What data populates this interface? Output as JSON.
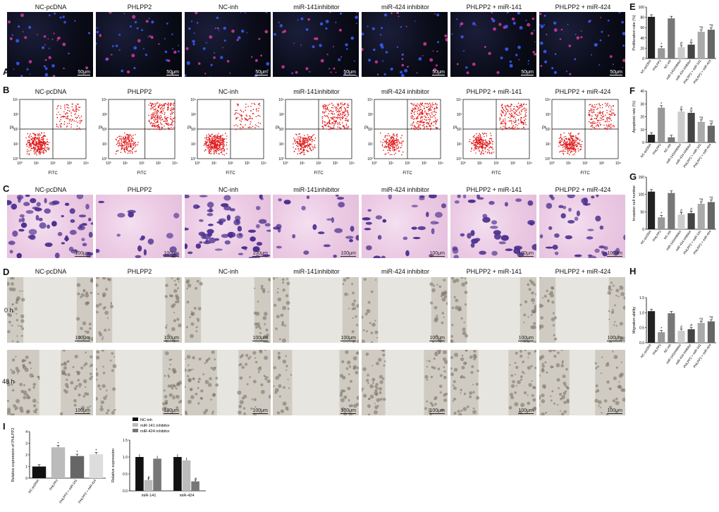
{
  "panels": {
    "A": "A",
    "B": "B",
    "C": "C",
    "D": "D",
    "E": "E",
    "F": "F",
    "G": "G",
    "H": "H",
    "I": "I"
  },
  "groups": [
    "NC-pcDNA",
    "PHLPP2",
    "NC-inh",
    "miR-141inhibitor",
    "miR-424 inhibitor",
    "PHLPP2 + miR-141",
    "PHLPP2 + miR-424"
  ],
  "scale_bars": {
    "A": "50μm",
    "C": "100μm",
    "D": "100μm"
  },
  "flow": {
    "ylabel": "PI",
    "xlabel": "FITC",
    "ticks": [
      "10⁰",
      "10¹",
      "10²",
      "10³",
      "10⁴"
    ]
  },
  "time_points": [
    "0 h",
    "48 h"
  ],
  "chart_data": [
    {
      "id": "E",
      "type": "bar",
      "ylabel": "Proliferation rate (%)",
      "ylim": [
        0,
        100
      ],
      "yticks": [
        "0",
        "20",
        "40",
        "60",
        "80",
        "100"
      ],
      "categories": [
        "NC-pcDNA",
        "PHLPP2",
        "NC-inh",
        "miR-141inhibitor",
        "miR-424 inhibitor",
        "PHLPP2 + miR-141",
        "PHLPP2 + miR-424"
      ],
      "values": [
        81,
        20,
        78,
        22,
        27,
        52,
        56
      ],
      "annotations": [
        "",
        "*",
        "",
        "#",
        "#",
        "*#",
        "*#"
      ],
      "colors": [
        "#222222",
        "#999999",
        "#777777",
        "#cccccc",
        "#444444",
        "#aaaaaa",
        "#666666"
      ]
    },
    {
      "id": "F",
      "type": "bar",
      "ylabel": "Apoptosis rate (%)",
      "ylim": [
        0,
        40
      ],
      "yticks": [
        "0",
        "10",
        "20",
        "30",
        "40"
      ],
      "categories": [
        "NC-pcDNA",
        "PHLPP2",
        "NC-inh",
        "miR-141inhibitor",
        "miR-424 inhibitor",
        "PHLPP2 + miR-141",
        "PHLPP2 + miR-424"
      ],
      "values": [
        6,
        27,
        4,
        24,
        23,
        16,
        13
      ],
      "annotations": [
        "",
        "*",
        "",
        "#",
        "#",
        "*#",
        "*#"
      ],
      "colors": [
        "#222222",
        "#999999",
        "#777777",
        "#cccccc",
        "#444444",
        "#aaaaaa",
        "#666666"
      ]
    },
    {
      "id": "G",
      "type": "bar",
      "ylabel": "Invasion cell number",
      "ylim": [
        0,
        150
      ],
      "yticks": [
        "0",
        "50",
        "100",
        "150"
      ],
      "categories": [
        "NC-pcDNA",
        "PHLPP2",
        "NC-inh",
        "miR-141inhibitor",
        "miR-424 inhibitor",
        "PHLPP2 + miR-141",
        "PHLPP2 + miR-424"
      ],
      "values": [
        108,
        34,
        104,
        42,
        46,
        73,
        78
      ],
      "annotations": [
        "",
        "*",
        "",
        "#",
        "#",
        "*#",
        "*#"
      ],
      "colors": [
        "#222222",
        "#999999",
        "#777777",
        "#cccccc",
        "#444444",
        "#aaaaaa",
        "#666666"
      ]
    },
    {
      "id": "H",
      "type": "bar",
      "ylabel": "Migration ability",
      "ylim": [
        0,
        1.5
      ],
      "yticks": [
        "0.0",
        "0.5",
        "1.0",
        "1.5"
      ],
      "categories": [
        "NC-pcDNA",
        "PHLPP2",
        "NC-inh",
        "miR-141inhibitor",
        "miR-424 inhibitor",
        "PHLPP2 + miR-141",
        "PHLPP2 + miR-424"
      ],
      "values": [
        1.05,
        0.35,
        0.98,
        0.4,
        0.45,
        0.66,
        0.71
      ],
      "annotations": [
        "",
        "*",
        "",
        "#",
        "#",
        "*#",
        "*#"
      ],
      "colors": [
        "#222222",
        "#999999",
        "#777777",
        "#cccccc",
        "#444444",
        "#aaaaaa",
        "#666666"
      ]
    },
    {
      "id": "I1",
      "type": "bar",
      "ylabel": "Relative expression of PHLPP2",
      "ylim": [
        0,
        4
      ],
      "yticks": [
        "0",
        "1",
        "2",
        "3",
        "4"
      ],
      "categories": [
        "NC-pcDNA",
        "PHLPP2",
        "PHLPP2 + miR-141",
        "PHLPP2 + miR-424"
      ],
      "values": [
        1.0,
        2.65,
        1.9,
        2.05
      ],
      "annotations": [
        "",
        "*",
        "*",
        "*"
      ],
      "colors": [
        "#111111",
        "#bbbbbb",
        "#666666",
        "#dddddd"
      ]
    },
    {
      "id": "I2",
      "type": "bar",
      "ylabel": "Relative expression",
      "ylim": [
        0,
        1.5
      ],
      "yticks": [
        "0.0",
        "0.5",
        "1.0",
        "1.5"
      ],
      "categories": [
        "miR-141",
        "miR-424"
      ],
      "series": [
        {
          "name": "NC-inh",
          "values": [
            1.0,
            1.0
          ],
          "color": "#111111"
        },
        {
          "name": "miR-141 inhibitor",
          "values": [
            0.32,
            0.9
          ],
          "color": "#bbbbbb"
        },
        {
          "name": "miR-424 inhibitor",
          "values": [
            0.95,
            0.28
          ],
          "color": "#777777"
        }
      ],
      "annotations": [
        [
          "",
          "#",
          ""
        ],
        [
          "",
          "",
          "#"
        ]
      ]
    }
  ]
}
